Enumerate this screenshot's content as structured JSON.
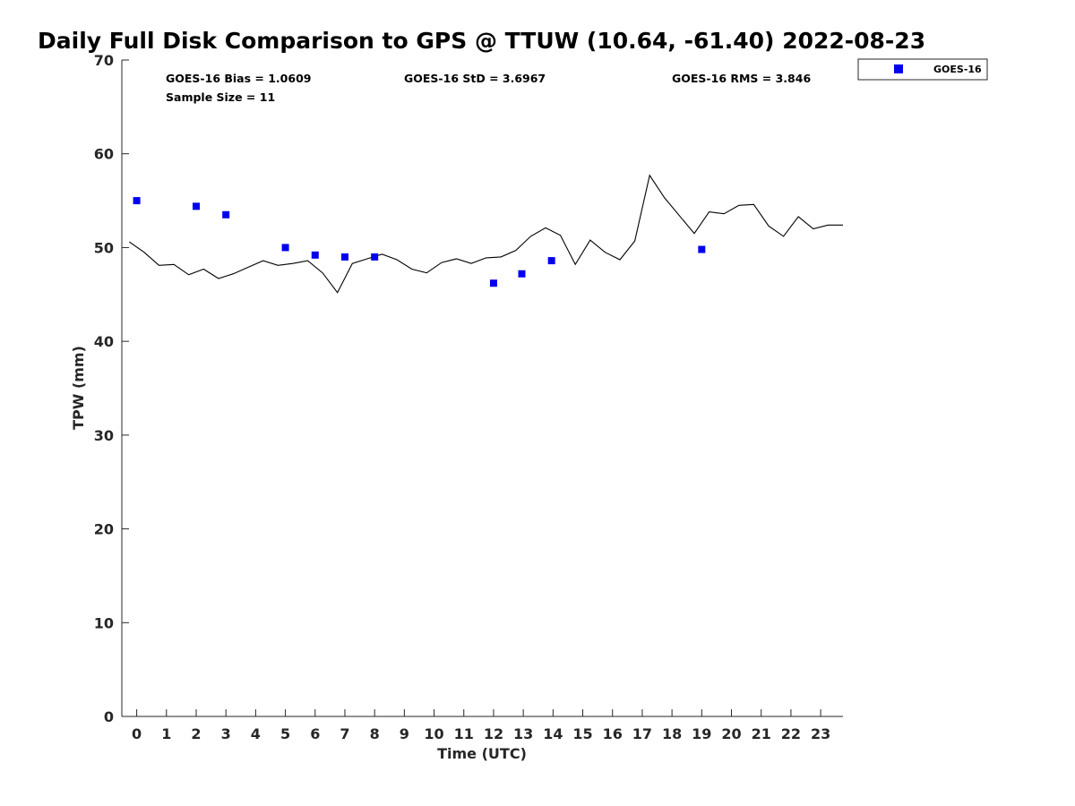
{
  "chart_data": {
    "type": "scatter",
    "title": "Daily Full Disk Comparison to GPS @ TTUW (10.64, -61.40) 2022-08-23",
    "xlabel": "Time (UTC)",
    "ylabel": "TPW (mm)",
    "xlim": [
      -0.5,
      23.75
    ],
    "ylim": [
      0,
      70
    ],
    "x_ticks": [
      0,
      1,
      2,
      3,
      4,
      5,
      6,
      7,
      8,
      9,
      10,
      11,
      12,
      13,
      14,
      15,
      16,
      17,
      18,
      19,
      20,
      21,
      22,
      23
    ],
    "x_tick_labels": [
      "0",
      "1",
      "2",
      "3",
      "4",
      "5",
      "6",
      "7",
      "8",
      "9",
      "10",
      "11",
      "12",
      "13",
      "14",
      "15",
      "16",
      "17",
      "18",
      "19",
      "20",
      "21",
      "22",
      "23"
    ],
    "y_ticks": [
      0,
      10,
      20,
      30,
      40,
      50,
      60,
      70
    ],
    "y_tick_labels": [
      "0",
      "10",
      "20",
      "30",
      "40",
      "50",
      "60",
      "70"
    ],
    "grid": false,
    "legend_position": "outside-top-right",
    "stats": {
      "bias": "GOES-16 Bias = 1.0609",
      "std": "GOES-16 StD = 3.6967",
      "rms": "GOES-16 RMS = 3.846",
      "sample": "Sample Size = 11"
    },
    "series": [
      {
        "name": "GOES-16",
        "kind": "scatter",
        "marker": "square",
        "color": "#0000ee",
        "x": [
          0,
          2,
          3,
          5,
          6,
          7,
          8,
          12,
          12.95,
          13.95,
          19
        ],
        "y": [
          55.0,
          54.4,
          53.5,
          50.0,
          49.2,
          49.0,
          49.0,
          46.2,
          47.2,
          48.6,
          49.8
        ]
      },
      {
        "kind": "line",
        "color": "#000000",
        "x": [
          -0.25,
          0.25,
          0.75,
          1.25,
          1.75,
          2.25,
          2.75,
          3.25,
          3.75,
          4.25,
          4.75,
          5.25,
          5.75,
          6.25,
          6.75,
          7.25,
          7.75,
          8.25,
          8.75,
          9.25,
          9.75,
          10.25,
          10.75,
          11.25,
          11.75,
          12.25,
          12.75,
          13.25,
          13.75,
          14.25,
          14.75,
          15.25,
          15.75,
          16.25,
          16.75,
          17.25,
          17.75,
          18.25,
          18.75,
          19.25,
          19.75,
          20.25,
          20.75,
          21.25,
          21.75,
          22.25,
          22.75,
          23.25,
          23.75
        ],
        "y": [
          50.6,
          49.5,
          48.1,
          48.2,
          47.1,
          47.7,
          46.7,
          47.2,
          47.9,
          48.6,
          48.1,
          48.3,
          48.6,
          47.3,
          45.2,
          48.3,
          48.8,
          49.3,
          48.7,
          47.7,
          47.3,
          48.4,
          48.8,
          48.3,
          48.9,
          49.0,
          49.7,
          51.2,
          52.1,
          51.3,
          48.2,
          50.8,
          49.5,
          48.7,
          50.7,
          57.7,
          55.3,
          53.4,
          51.5,
          53.8,
          53.6,
          54.5,
          54.6,
          52.3,
          51.2,
          53.3,
          52.0,
          52.4,
          52.4
        ]
      }
    ]
  }
}
